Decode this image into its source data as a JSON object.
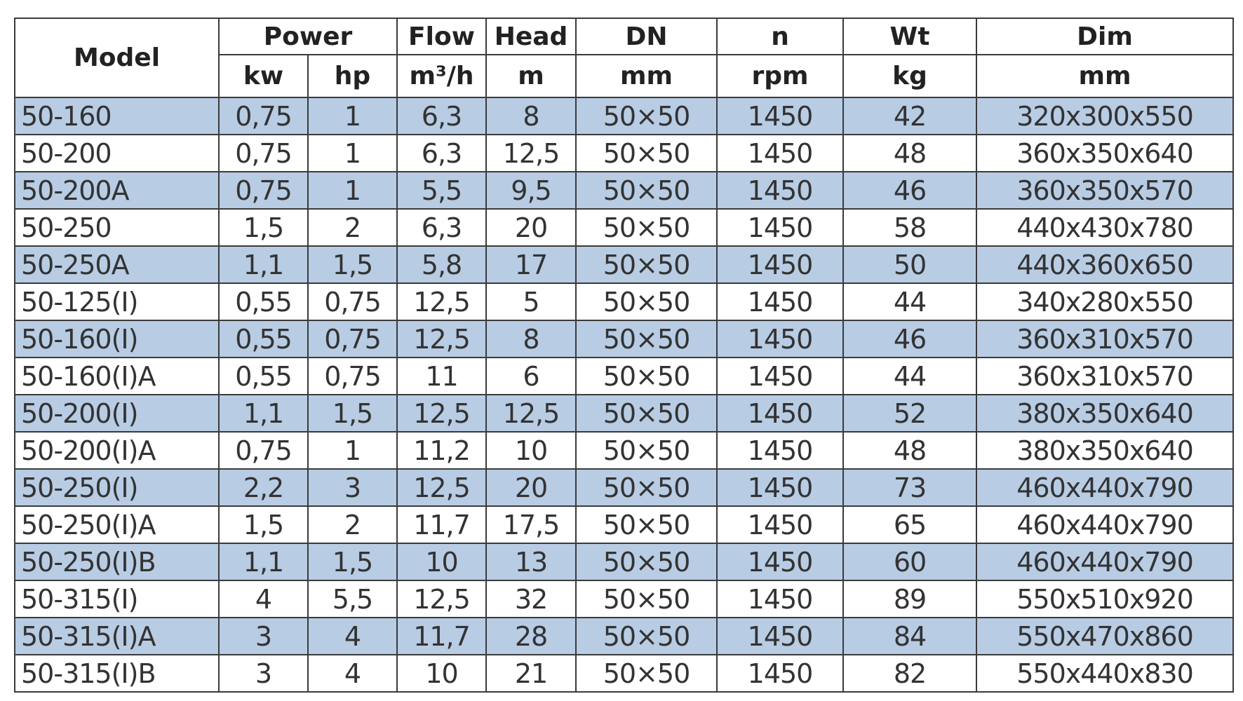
{
  "headers": {
    "model": "Model",
    "power": "Power",
    "flow": "Flow",
    "head": "Head",
    "dn": "DN",
    "n": "n",
    "wt": "Wt",
    "dim": "Dim",
    "units": [
      "kw",
      "hp",
      "m³/h",
      "m",
      "mm",
      "rpm",
      "kg",
      "mm"
    ]
  },
  "colors": {
    "row_alt": "#b8cce4",
    "row": "#ffffff"
  },
  "rows": [
    [
      "50-160",
      "0,75",
      "1",
      "6,3",
      "8",
      "50×50",
      "1450",
      "42",
      "320x300x550"
    ],
    [
      "50-200",
      "0,75",
      "1",
      "6,3",
      "12,5",
      "50×50",
      "1450",
      "48",
      "360x350x640"
    ],
    [
      "50-200A",
      "0,75",
      "1",
      "5,5",
      "9,5",
      "50×50",
      "1450",
      "46",
      "360x350x570"
    ],
    [
      "50-250",
      "1,5",
      "2",
      "6,3",
      "20",
      "50×50",
      "1450",
      "58",
      "440x430x780"
    ],
    [
      "50-250A",
      "1,1",
      "1,5",
      "5,8",
      "17",
      "50×50",
      "1450",
      "50",
      "440x360x650"
    ],
    [
      "50-125(I)",
      "0,55",
      "0,75",
      "12,5",
      "5",
      "50×50",
      "1450",
      "44",
      "340x280x550"
    ],
    [
      "50-160(I)",
      "0,55",
      "0,75",
      "12,5",
      "8",
      "50×50",
      "1450",
      "46",
      "360x310x570"
    ],
    [
      "50-160(I)A",
      "0,55",
      "0,75",
      "11",
      "6",
      "50×50",
      "1450",
      "44",
      "360x310x570"
    ],
    [
      "50-200(I)",
      "1,1",
      "1,5",
      "12,5",
      "12,5",
      "50×50",
      "1450",
      "52",
      "380x350x640"
    ],
    [
      "50-200(I)A",
      "0,75",
      "1",
      "11,2",
      "10",
      "50×50",
      "1450",
      "48",
      "380x350x640"
    ],
    [
      "50-250(I)",
      "2,2",
      "3",
      "12,5",
      "20",
      "50×50",
      "1450",
      "73",
      "460x440x790"
    ],
    [
      "50-250(I)A",
      "1,5",
      "2",
      "11,7",
      "17,5",
      "50×50",
      "1450",
      "65",
      "460x440x790"
    ],
    [
      "50-250(I)B",
      "1,1",
      "1,5",
      "10",
      "13",
      "50×50",
      "1450",
      "60",
      "460x440x790"
    ],
    [
      "50-315(I)",
      "4",
      "5,5",
      "12,5",
      "32",
      "50×50",
      "1450",
      "89",
      "550x510x920"
    ],
    [
      "50-315(I)A",
      "3",
      "4",
      "11,7",
      "28",
      "50×50",
      "1450",
      "84",
      "550x470x860"
    ],
    [
      "50-315(I)B",
      "3",
      "4",
      "10",
      "21",
      "50×50",
      "1450",
      "82",
      "550x440x830"
    ]
  ]
}
